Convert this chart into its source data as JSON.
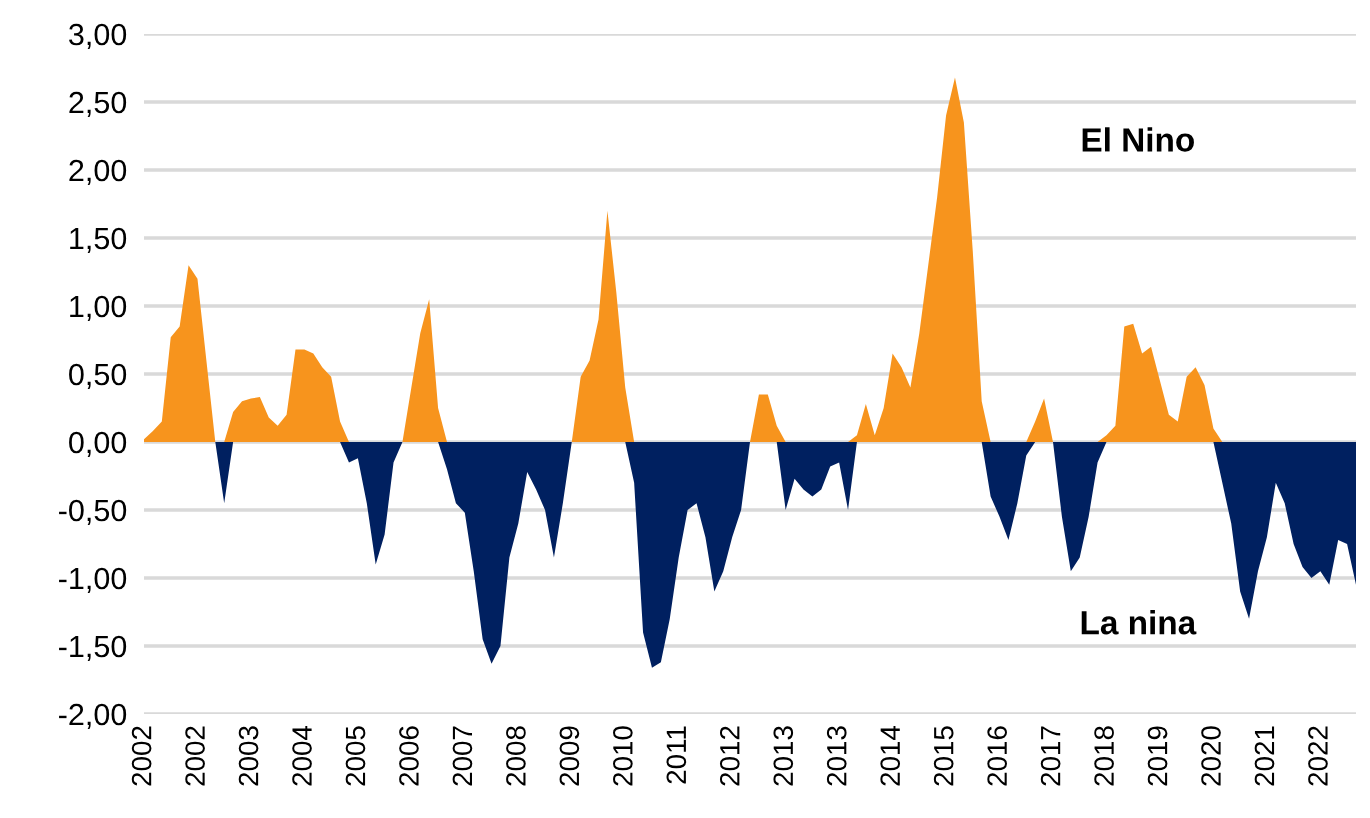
{
  "chart_data": {
    "type": "area",
    "categories": [
      "2002",
      null,
      null,
      null,
      null,
      null,
      "2002",
      null,
      null,
      null,
      null,
      null,
      "2003",
      null,
      null,
      null,
      null,
      null,
      "2004",
      null,
      null,
      null,
      null,
      null,
      "2005",
      null,
      null,
      null,
      null,
      null,
      "2006",
      null,
      null,
      null,
      null,
      null,
      "2007",
      null,
      null,
      null,
      null,
      null,
      "2008",
      null,
      null,
      null,
      null,
      null,
      "2009",
      null,
      null,
      null,
      null,
      null,
      "2010",
      null,
      null,
      null,
      null,
      null,
      "2011",
      null,
      null,
      null,
      null,
      null,
      "2012",
      null,
      null,
      null,
      null,
      null,
      "2013",
      null,
      null,
      null,
      null,
      null,
      "2013",
      null,
      null,
      null,
      null,
      null,
      "2014",
      null,
      null,
      null,
      null,
      null,
      "2015",
      null,
      null,
      null,
      null,
      null,
      "2016",
      null,
      null,
      null,
      null,
      null,
      "2017",
      null,
      null,
      null,
      null,
      null,
      "2018",
      null,
      null,
      null,
      null,
      null,
      "2019",
      null,
      null,
      null,
      null,
      null,
      "2020",
      null,
      null,
      null,
      null,
      null,
      "2021",
      null,
      null,
      null,
      null,
      null,
      "2022",
      null,
      null,
      null,
      null
    ],
    "series": [
      {
        "color": "#f7941d",
        "values": [
          0.02,
          0.08,
          0.15,
          0.77,
          0.85,
          1.3,
          1.2,
          0.6,
          0,
          0,
          0.22,
          0.3,
          0.32,
          0.33,
          0.18,
          0.12,
          0.2,
          0.68,
          0.68,
          0.65,
          0.55,
          0.48,
          0.15,
          0,
          0,
          0,
          0,
          0,
          0,
          0,
          0.4,
          0.8,
          1.05,
          0.25,
          0,
          0,
          0,
          0,
          0,
          0,
          0,
          0,
          0,
          0,
          0,
          0,
          0,
          0,
          0,
          0.48,
          0.6,
          0.9,
          1.7,
          1.1,
          0.4,
          0,
          0,
          0,
          0,
          0,
          0,
          0,
          0,
          0,
          0,
          0,
          0,
          0,
          0,
          0.35,
          0.35,
          0.12,
          0,
          0,
          0,
          0,
          0,
          0,
          0,
          0,
          0.05,
          0.28,
          0.05,
          0.25,
          0.65,
          0.55,
          0.4,
          0.8,
          1.3,
          1.8,
          2.4,
          2.68,
          2.35,
          1.4,
          0.3,
          0,
          0,
          0,
          0,
          0,
          0.15,
          0.32,
          0,
          0,
          0,
          0,
          0,
          0,
          0.05,
          0.12,
          0.85,
          0.87,
          0.65,
          0.7,
          0.45,
          0.2,
          0.15,
          0.48,
          0.55,
          0.42,
          0.1,
          0,
          0,
          0,
          0,
          0,
          0,
          0,
          0,
          0,
          0,
          0,
          0,
          0,
          0,
          0,
          0
        ]
      },
      {
        "color": "#002060",
        "values": [
          0,
          0,
          0,
          0,
          0,
          0,
          0,
          0,
          0,
          -0.45,
          0,
          0,
          0,
          0,
          0,
          0,
          0,
          0,
          0,
          0,
          0,
          0,
          0,
          -0.15,
          -0.12,
          -0.45,
          -0.9,
          -0.68,
          -0.15,
          0,
          0,
          0,
          0,
          0,
          -0.2,
          -0.45,
          -0.52,
          -0.95,
          -1.45,
          -1.63,
          -1.5,
          -0.85,
          -0.6,
          -0.22,
          -0.35,
          -0.5,
          -0.85,
          -0.45,
          0,
          0,
          0,
          0,
          0,
          0,
          0,
          -0.3,
          -1.4,
          -1.66,
          -1.62,
          -1.3,
          -0.85,
          -0.5,
          -0.45,
          -0.7,
          -1.1,
          -0.95,
          -0.7,
          -0.5,
          0,
          0,
          0,
          0,
          -0.5,
          -0.27,
          -0.35,
          -0.4,
          -0.35,
          -0.18,
          -0.15,
          -0.5,
          0,
          0,
          0,
          0,
          0,
          0,
          0,
          0,
          0,
          0,
          0,
          0,
          0,
          0,
          0,
          -0.4,
          -0.55,
          -0.72,
          -0.45,
          -0.1,
          0,
          0,
          0,
          -0.55,
          -0.95,
          -0.85,
          -0.55,
          -0.15,
          0,
          0,
          0,
          0,
          0,
          0,
          0,
          0,
          0,
          0,
          0,
          0,
          0,
          -0.3,
          -0.6,
          -1.1,
          -1.3,
          -0.95,
          -0.7,
          -0.3,
          -0.45,
          -0.75,
          -0.92,
          -1.0,
          -0.95,
          -1.05,
          -0.72,
          -0.75,
          -1.05
        ]
      }
    ],
    "ylim": [
      -2,
      3
    ],
    "yticks": [
      {
        "value": -2,
        "label": "-2,00"
      },
      {
        "value": -1.5,
        "label": "-1,50"
      },
      {
        "value": -1,
        "label": "-1,00"
      },
      {
        "value": -0.5,
        "label": "-0,50"
      },
      {
        "value": 0,
        "label": "0,00"
      },
      {
        "value": 0.5,
        "label": "0,50"
      },
      {
        "value": 1,
        "label": "1,00"
      },
      {
        "value": 1.5,
        "label": "1,50"
      },
      {
        "value": 2,
        "label": "2,00"
      },
      {
        "value": 2.5,
        "label": "2,50"
      },
      {
        "value": 3,
        "label": "3,00"
      }
    ],
    "annotations": [
      "El Nino",
      "La nina"
    ],
    "grid": "y",
    "legend": false
  }
}
